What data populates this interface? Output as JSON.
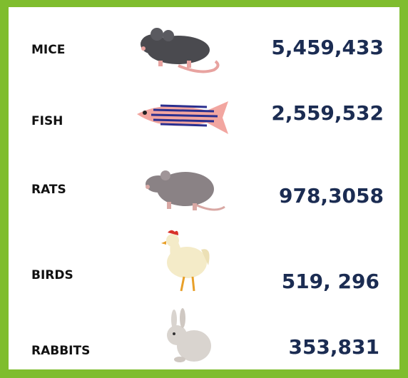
{
  "rows": [
    {
      "label": "MICE",
      "count": "5,459,433"
    },
    {
      "label": "FISH",
      "count": "2,559,532"
    },
    {
      "label": "RATS",
      "count": "978,3058"
    },
    {
      "label": "BIRDS",
      "count": "519, 296"
    },
    {
      "label": "RABBITS",
      "count": "353,831"
    }
  ]
}
